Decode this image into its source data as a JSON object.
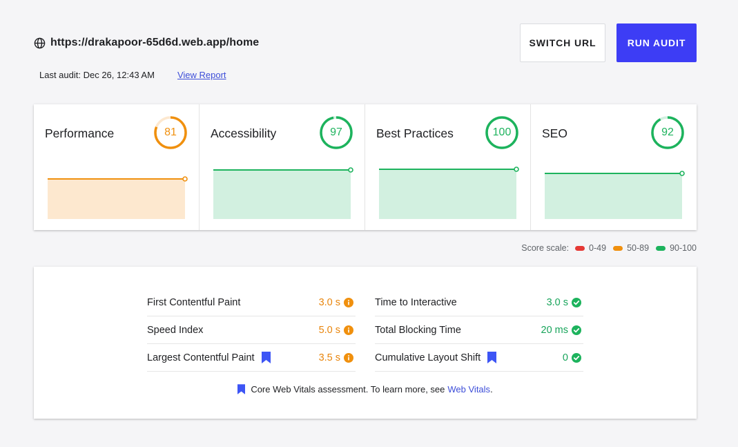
{
  "header": {
    "url": "https://drakapoor-65d6d.web.app/home",
    "last_audit": "Last audit: Dec 26, 12:43 AM",
    "view_report": "View Report",
    "switch_url_label": "SWITCH URL",
    "run_audit_label": "RUN AUDIT"
  },
  "colors": {
    "orange": "#f0900e",
    "orange_fill": "#fde8cf",
    "green": "#1db35d",
    "green_fill": "#d2f0e0",
    "red": "#e53935",
    "accent": "#3d3df5"
  },
  "scores": [
    {
      "label": "Performance",
      "score": "81",
      "value": 81,
      "status": "orange",
      "trend_level": 0.74
    },
    {
      "label": "Accessibility",
      "score": "97",
      "value": 97,
      "status": "green",
      "trend_level": 0.89
    },
    {
      "label": "Best Practices",
      "score": "100",
      "value": 100,
      "status": "green",
      "trend_level": 0.91
    },
    {
      "label": "SEO",
      "score": "92",
      "value": 92,
      "status": "green",
      "trend_level": 0.83
    }
  ],
  "score_scale": {
    "label": "Score scale:",
    "ranges": [
      {
        "range": "0-49",
        "color": "red"
      },
      {
        "range": "50-89",
        "color": "orange"
      },
      {
        "range": "90-100",
        "color": "green"
      }
    ]
  },
  "metrics": {
    "left": [
      {
        "name": "First Contentful Paint",
        "value": "3.0 s",
        "status": "orange",
        "icon": "info-icon",
        "core_web_vital": false
      },
      {
        "name": "Speed Index",
        "value": "5.0 s",
        "status": "orange",
        "icon": "info-icon",
        "core_web_vital": false
      },
      {
        "name": "Largest Contentful Paint",
        "value": "3.5 s",
        "status": "orange",
        "icon": "info-icon",
        "core_web_vital": true
      }
    ],
    "right": [
      {
        "name": "Time to Interactive",
        "value": "3.0 s",
        "status": "green",
        "icon": "check-icon",
        "core_web_vital": false
      },
      {
        "name": "Total Blocking Time",
        "value": "20 ms",
        "status": "green",
        "icon": "check-icon",
        "core_web_vital": false
      },
      {
        "name": "Cumulative Layout Shift",
        "value": "0",
        "status": "green",
        "icon": "check-icon",
        "core_web_vital": true
      }
    ]
  },
  "footnote": {
    "text": "Core Web Vitals assessment. To learn more, see",
    "link": "Web Vitals",
    "end": "."
  }
}
